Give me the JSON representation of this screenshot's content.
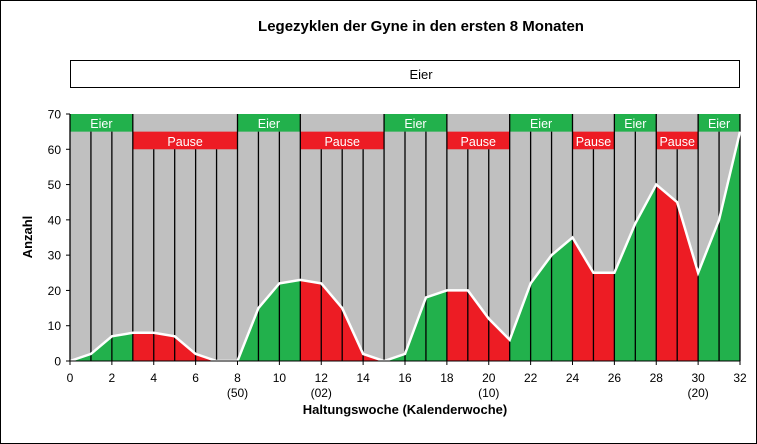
{
  "chart_data": {
    "type": "area",
    "title": "Legezyklen der Gyne in den ersten 8 Monaten",
    "legend_label": "Eier",
    "xlabel": "Haltungswoche (Kalenderwoche)",
    "ylabel": "Anzahl",
    "xlim": [
      0,
      32
    ],
    "ylim": [
      0,
      70
    ],
    "yticks": [
      0,
      10,
      20,
      30,
      40,
      50,
      60,
      70
    ],
    "xticks": [
      0,
      2,
      4,
      6,
      8,
      10,
      12,
      14,
      16,
      18,
      20,
      22,
      24,
      26,
      28,
      30,
      32
    ],
    "xticks_secondary": [
      {
        "x": 8,
        "label": "(50)"
      },
      {
        "x": 12,
        "label": "(02)"
      },
      {
        "x": 20,
        "label": "(10)"
      },
      {
        "x": 30,
        "label": "(20)"
      }
    ],
    "x": [
      0,
      1,
      2,
      3,
      4,
      5,
      6,
      7,
      8,
      9,
      10,
      11,
      12,
      13,
      14,
      15,
      16,
      17,
      18,
      19,
      20,
      21,
      22,
      23,
      24,
      25,
      26,
      27,
      28,
      29,
      30,
      31,
      32
    ],
    "values": [
      0,
      2,
      7,
      8,
      8,
      7,
      2,
      0,
      0,
      15,
      22,
      23,
      22,
      15,
      2,
      0,
      2,
      18,
      20,
      20,
      12,
      6,
      22,
      30,
      35,
      25,
      25,
      39,
      50,
      45,
      25,
      40,
      65
    ],
    "phases": [
      {
        "label": "Eier",
        "type": "eggs",
        "from": 0,
        "to": 3
      },
      {
        "label": "Pause",
        "type": "pause",
        "from": 3,
        "to": 8
      },
      {
        "label": "Eier",
        "type": "eggs",
        "from": 8,
        "to": 11
      },
      {
        "label": "Pause",
        "type": "pause",
        "from": 11,
        "to": 15
      },
      {
        "label": "Eier",
        "type": "eggs",
        "from": 15,
        "to": 18
      },
      {
        "label": "Pause",
        "type": "pause",
        "from": 18,
        "to": 21
      },
      {
        "label": "Eier",
        "type": "eggs",
        "from": 21,
        "to": 24
      },
      {
        "label": "Pause",
        "type": "pause",
        "from": 24,
        "to": 26
      },
      {
        "label": "Eier",
        "type": "eggs",
        "from": 26,
        "to": 28
      },
      {
        "label": "Pause",
        "type": "pause",
        "from": 28,
        "to": 30
      },
      {
        "label": "Eier",
        "type": "eggs",
        "from": 30,
        "to": 32
      }
    ],
    "colors": {
      "eggs": "#22b14c",
      "pause": "#ed1c24",
      "background": "#c0c0c0",
      "line": "#ffffff"
    },
    "grid": true,
    "legend_placement": "top"
  }
}
